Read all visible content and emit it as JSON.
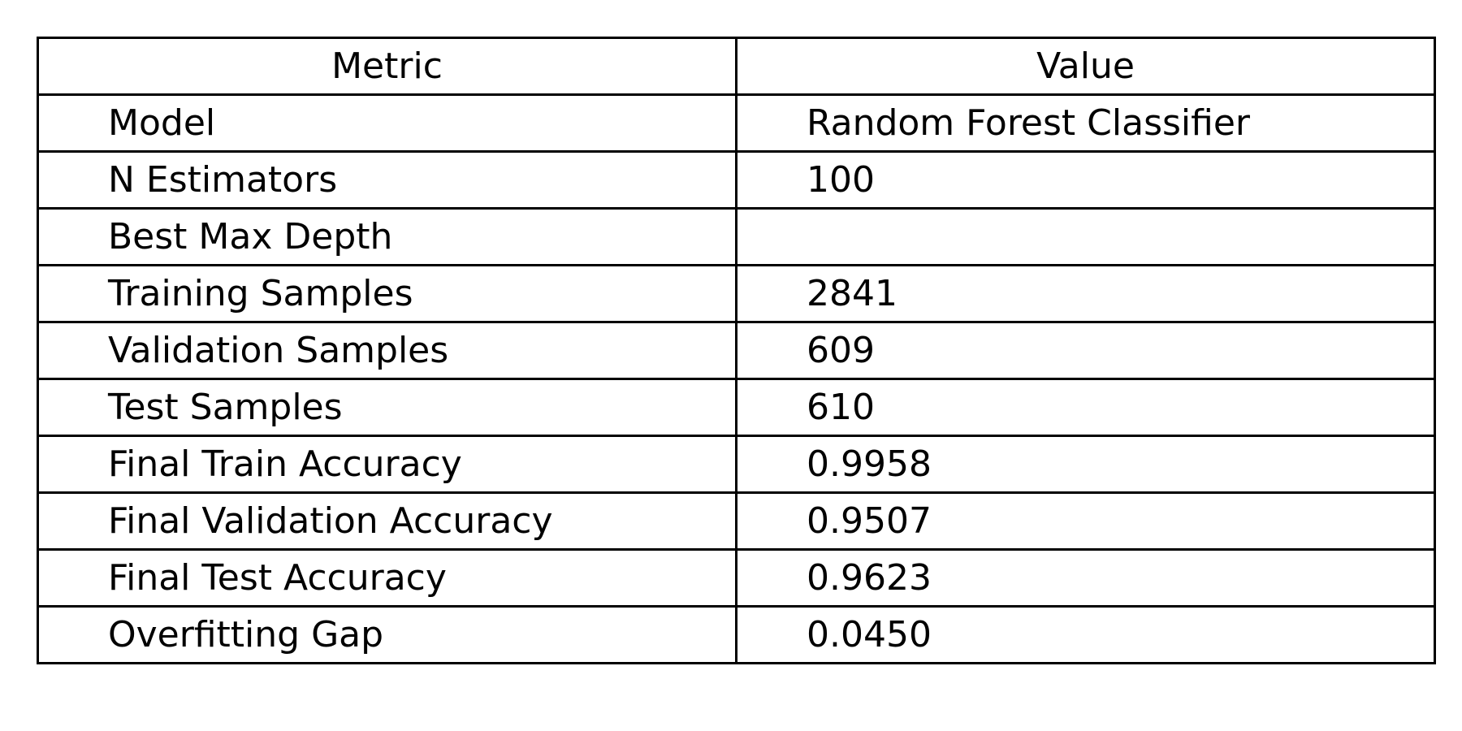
{
  "chart_data": {
    "type": "table",
    "columns": [
      "Metric",
      "Value"
    ],
    "rows": [
      [
        "Model",
        "Random Forest Classifier"
      ],
      [
        "N Estimators",
        "100"
      ],
      [
        "Best Max Depth",
        ""
      ],
      [
        "Training Samples",
        "2841"
      ],
      [
        "Validation Samples",
        "609"
      ],
      [
        "Test Samples",
        "610"
      ],
      [
        "Final Train Accuracy",
        "0.9958"
      ],
      [
        "Final Validation Accuracy",
        "0.9507"
      ],
      [
        "Final Test Accuracy",
        "0.9623"
      ],
      [
        "Overfitting Gap",
        "0.0450"
      ]
    ]
  },
  "colors": {
    "border": "#000000",
    "text": "#000000",
    "background": "#ffffff"
  }
}
